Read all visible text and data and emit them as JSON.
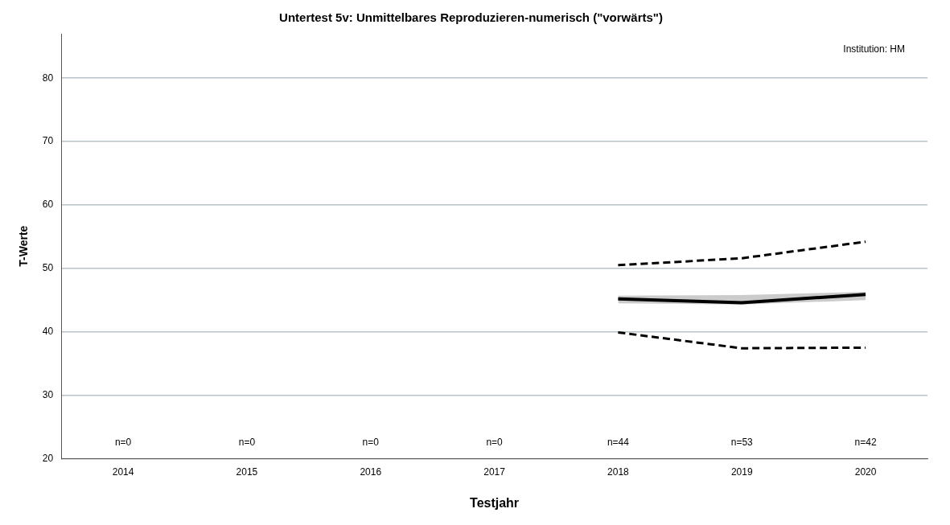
{
  "chart_data": {
    "type": "line",
    "title": "Untertest 5v: Unmittelbares Reproduzieren-numerisch (\"vorwärts\")",
    "xlabel": "Testjahr",
    "ylabel": "T-Werte",
    "categories": [
      "2014",
      "2015",
      "2016",
      "2017",
      "2018",
      "2019",
      "2020"
    ],
    "series": [
      {
        "color": "#000000",
        "line_style": "solid",
        "values": [
          null,
          null,
          null,
          null,
          45.2,
          44.6,
          45.9
        ],
        "lower": [
          null,
          null,
          null,
          null,
          44.5,
          44.3,
          45.0
        ],
        "upper": [
          null,
          null,
          null,
          null,
          45.7,
          45.8,
          46.3
        ]
      },
      {
        "color": "#000000",
        "line_style": "dashed",
        "values": [
          null,
          null,
          null,
          null,
          50.5,
          51.6,
          54.2
        ]
      },
      {
        "color": "#000000",
        "line_style": "dashed",
        "values": [
          null,
          null,
          null,
          null,
          39.9,
          37.4,
          37.5
        ]
      }
    ],
    "ylim": [
      20,
      87
    ],
    "yticks": [
      20,
      30,
      40,
      50,
      60,
      70,
      80
    ],
    "grid": "y",
    "legend": false,
    "marker": "none",
    "annotations": [
      "Institution: HM",
      "n=0",
      "n=0",
      "n=0",
      "n=0",
      "n=44",
      "n=53",
      "n=42"
    ]
  }
}
